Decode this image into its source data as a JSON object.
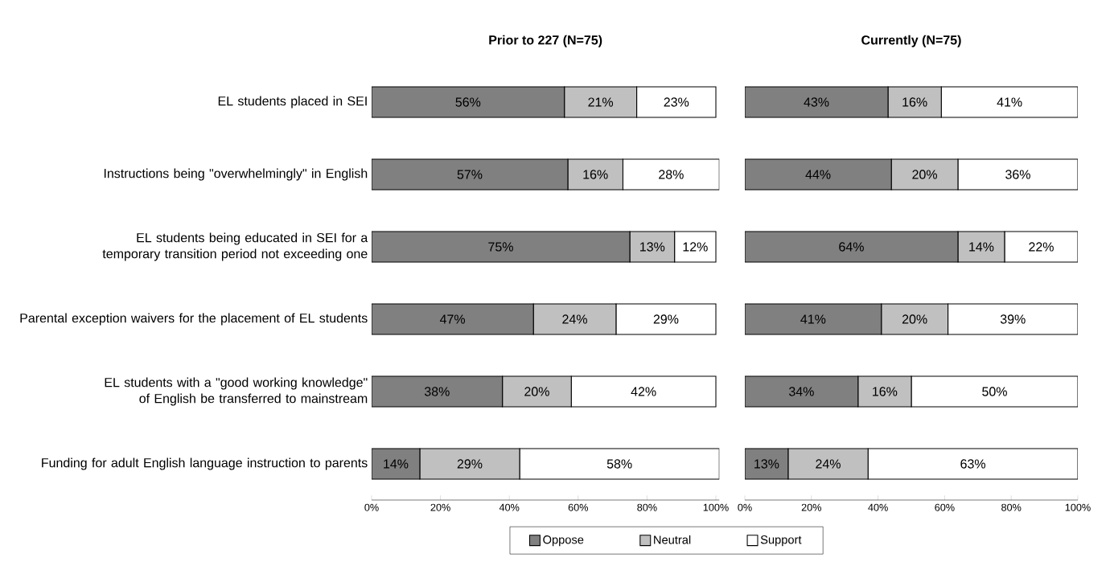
{
  "chart_data": [
    {
      "type": "bar",
      "orientation": "horizontal",
      "stacked": true,
      "title": "Prior to 227 (N=75)",
      "categories": [
        "EL students placed in SEI",
        "Instructions being \"overwhelmingly\" in English",
        "EL students being educated in SEI for a temporary transition period not exceeding one",
        "Parental exception waivers for the placement of EL students",
        "EL students with a \"good working knowledge\" of English be transferred to mainstream",
        "Funding for adult English language instruction to parents"
      ],
      "series": [
        {
          "name": "Oppose",
          "color": "#808080",
          "values": [
            56,
            57,
            75,
            47,
            38,
            14
          ],
          "value_labels": [
            "56%",
            "57%",
            "75%",
            "47%",
            "38%",
            "14%"
          ]
        },
        {
          "name": "Neutral",
          "color": "#c0c0c0",
          "values": [
            21,
            16,
            13,
            24,
            20,
            29
          ],
          "value_labels": [
            "21%",
            "16%",
            "13%",
            "24%",
            "20%",
            "29%"
          ]
        },
        {
          "name": "Support",
          "color": "#ffffff",
          "values": [
            23,
            28,
            12,
            29,
            42,
            58
          ],
          "value_labels": [
            "23%",
            "28%",
            "12%",
            "29%",
            "42%",
            "58%"
          ]
        }
      ],
      "xlim": [
        0,
        101
      ],
      "xticks": [
        {
          "value": 0,
          "label": "0%"
        },
        {
          "value": 20,
          "label": "20%"
        },
        {
          "value": 40,
          "label": "40%"
        },
        {
          "value": 60,
          "label": "60%"
        },
        {
          "value": 80,
          "label": "80%"
        },
        {
          "value": 100,
          "label": "100%"
        }
      ],
      "legend": "bottom"
    },
    {
      "type": "bar",
      "orientation": "horizontal",
      "stacked": true,
      "title": "Currently (N=75)",
      "categories": [
        null,
        null,
        null,
        null,
        null,
        null
      ],
      "series": [
        {
          "color": "#808080",
          "values": [
            43,
            44,
            64,
            41,
            34,
            13
          ],
          "value_labels": [
            "43%",
            "44%",
            "64%",
            "41%",
            "34%",
            "13%"
          ]
        },
        {
          "color": "#c0c0c0",
          "values": [
            16,
            20,
            14,
            20,
            16,
            24
          ],
          "value_labels": [
            "16%",
            "20%",
            "14%",
            "20%",
            "16%",
            "24%"
          ]
        },
        {
          "color": "#ffffff",
          "values": [
            41,
            36,
            22,
            39,
            50,
            63
          ],
          "value_labels": [
            "41%",
            "36%",
            "22%",
            "39%",
            "50%",
            "63%"
          ]
        }
      ],
      "xlim": [
        0,
        100
      ],
      "xticks": [
        {
          "value": 0,
          "label": "0%"
        },
        {
          "value": 20,
          "label": "20%"
        },
        {
          "value": 40,
          "label": "40%"
        },
        {
          "value": 60,
          "label": "60%"
        },
        {
          "value": 80,
          "label": "80%"
        },
        {
          "value": 100,
          "label": "100%"
        }
      ],
      "tick_labels": "x"
    }
  ]
}
